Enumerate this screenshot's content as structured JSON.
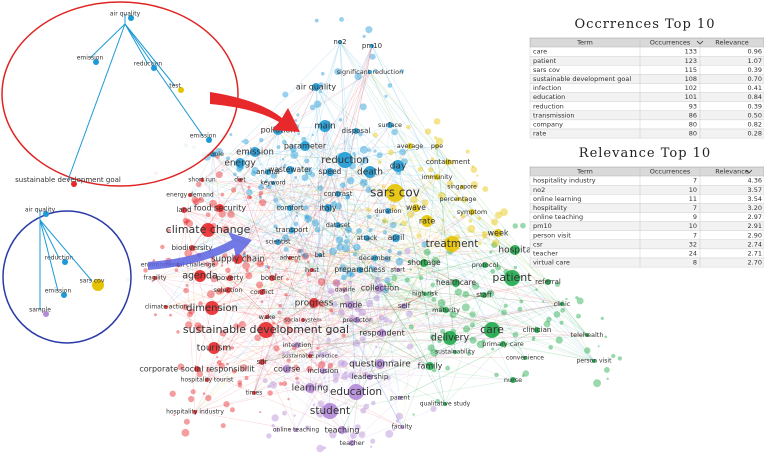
{
  "network": {
    "nodes": [
      {
        "label": "no2",
        "color": "#1c9ad6"
      },
      {
        "label": "pm10",
        "color": "#1c9ad6"
      },
      {
        "label": "significant reduction",
        "color": "#1c9ad6"
      },
      {
        "label": "air quality",
        "color": "#1c9ad6"
      },
      {
        "label": "surface",
        "color": "#1c9ad6"
      },
      {
        "label": "pollution",
        "color": "#1c9ad6"
      },
      {
        "label": "main",
        "color": "#1c9ad6"
      },
      {
        "label": "disposal",
        "color": "#1c9ad6"
      },
      {
        "label": "parameter",
        "color": "#1c9ad6"
      },
      {
        "label": "reduction",
        "color": "#1c9ad6"
      },
      {
        "label": "average",
        "color": "#e6c300"
      },
      {
        "label": "ppe",
        "color": "#e6c300"
      },
      {
        "label": "emission",
        "color": "#1c9ad6"
      },
      {
        "label": "people",
        "color": "#1c9ad6"
      },
      {
        "label": "day",
        "color": "#1c9ad6"
      },
      {
        "label": "containment",
        "color": "#e6c300"
      },
      {
        "label": "death",
        "color": "#1c9ad6"
      },
      {
        "label": "speed",
        "color": "#1c9ad6"
      },
      {
        "label": "wastewater",
        "color": "#1c9ad6"
      },
      {
        "label": "energy",
        "color": "#1c9ad6"
      },
      {
        "label": "animal",
        "color": "#1c9ad6"
      },
      {
        "label": "keyword",
        "color": "#1c9ad6"
      },
      {
        "label": "short run",
        "color": "#e8292b"
      },
      {
        "label": "diet",
        "color": "#e8292b"
      },
      {
        "label": "immunity",
        "color": "#e6c300"
      },
      {
        "label": "energy demand",
        "color": "#e8292b"
      },
      {
        "label": "contrast",
        "color": "#1c9ad6"
      },
      {
        "label": "sars cov",
        "color": "#e6c300"
      },
      {
        "label": "singapore",
        "color": "#e6c300"
      },
      {
        "label": "percentage",
        "color": "#e6c300"
      },
      {
        "label": "italy",
        "color": "#1c9ad6"
      },
      {
        "label": "land",
        "color": "#e8292b"
      },
      {
        "label": "food security",
        "color": "#e8292b"
      },
      {
        "label": "comfort",
        "color": "#1c9ad6"
      },
      {
        "label": "duration",
        "color": "#1c9ad6"
      },
      {
        "label": "wave",
        "color": "#e6c300"
      },
      {
        "label": "symptom",
        "color": "#e6c300"
      },
      {
        "label": "dataset",
        "color": "#1c9ad6"
      },
      {
        "label": "climate change",
        "color": "#e8292b"
      },
      {
        "label": "transport",
        "color": "#1c9ad6"
      },
      {
        "label": "rate",
        "color": "#e6c300"
      },
      {
        "label": "week",
        "color": "#e6c300"
      },
      {
        "label": "april",
        "color": "#1c9ad6"
      },
      {
        "label": "attack",
        "color": "#1c9ad6"
      },
      {
        "label": "scientist",
        "color": "#1c9ad6"
      },
      {
        "label": "treatment",
        "color": "#e6c300"
      },
      {
        "label": "biodiversity",
        "color": "#e8292b"
      },
      {
        "label": "bat",
        "color": "#1c9ad6"
      },
      {
        "label": "december",
        "color": "#1c9ad6"
      },
      {
        "label": "hospita",
        "color": "#1ea84a"
      },
      {
        "label": "supply chain",
        "color": "#e8292b"
      },
      {
        "label": "advent",
        "color": "#e8292b"
      },
      {
        "label": "shortage",
        "color": "#1ea84a"
      },
      {
        "label": "protocol",
        "color": "#1ea84a"
      },
      {
        "label": "environmental challenge",
        "color": "#e8292b"
      },
      {
        "label": "agenda",
        "color": "#e8292b"
      },
      {
        "label": "poverty",
        "color": "#e8292b"
      },
      {
        "label": "host",
        "color": "#e8292b"
      },
      {
        "label": "preparedness",
        "color": "#1c9ad6"
      },
      {
        "label": "start",
        "color": "#b48ad8"
      },
      {
        "label": "patient",
        "color": "#1ea84a"
      },
      {
        "label": "fragility",
        "color": "#e8292b"
      },
      {
        "label": "selection",
        "color": "#e8292b"
      },
      {
        "label": "conflict",
        "color": "#e8292b"
      },
      {
        "label": "border",
        "color": "#e8292b"
      },
      {
        "label": "daylife",
        "color": "#b48ad8"
      },
      {
        "label": "collection",
        "color": "#b48ad8"
      },
      {
        "label": "healthcare",
        "color": "#1ea84a"
      },
      {
        "label": "referral",
        "color": "#1ea84a"
      },
      {
        "label": "climate action",
        "color": "#e8292b"
      },
      {
        "label": "dimension",
        "color": "#e8292b"
      },
      {
        "label": "wake",
        "color": "#e8292b"
      },
      {
        "label": "progress",
        "color": "#e8292b"
      },
      {
        "label": "mode",
        "color": "#b48ad8"
      },
      {
        "label": "self",
        "color": "#b48ad8"
      },
      {
        "label": "high risk",
        "color": "#1ea84a"
      },
      {
        "label": "staff",
        "color": "#1ea84a"
      },
      {
        "label": "clinic",
        "color": "#1ea84a"
      },
      {
        "label": "maturity",
        "color": "#1ea84a"
      },
      {
        "label": "social system",
        "color": "#e8292b"
      },
      {
        "label": "predictor",
        "color": "#b48ad8"
      },
      {
        "label": "sustainable development goal",
        "color": "#e8292b"
      },
      {
        "label": "respondent",
        "color": "#b48ad8"
      },
      {
        "label": "care",
        "color": "#1ea84a"
      },
      {
        "label": "clinician",
        "color": "#1ea84a"
      },
      {
        "label": "telehealth",
        "color": "#1ea84a"
      },
      {
        "label": "tourism",
        "color": "#e8292b"
      },
      {
        "label": "intention",
        "color": "#b48ad8"
      },
      {
        "label": "delivery",
        "color": "#1ea84a"
      },
      {
        "label": "primary care",
        "color": "#1ea84a"
      },
      {
        "label": "sustainable practice",
        "color": "#e8292b"
      },
      {
        "label": "sustainability",
        "color": "#1ea84a"
      },
      {
        "label": "sdr",
        "color": "#e8292b"
      },
      {
        "label": "questionnaire",
        "color": "#b48ad8"
      },
      {
        "label": "convenience",
        "color": "#1ea84a"
      },
      {
        "label": "person visit",
        "color": "#1ea84a"
      },
      {
        "label": "corporate social responsibilit",
        "color": "#e8292b"
      },
      {
        "label": "course",
        "color": "#b48ad8"
      },
      {
        "label": "inclusion",
        "color": "#b48ad8"
      },
      {
        "label": "family",
        "color": "#1ea84a"
      },
      {
        "label": "leadership",
        "color": "#b48ad8"
      },
      {
        "label": "hospitality tourist",
        "color": "#e8292b"
      },
      {
        "label": "nurse",
        "color": "#1ea84a"
      },
      {
        "label": "learning",
        "color": "#b48ad8"
      },
      {
        "label": "education",
        "color": "#b48ad8"
      },
      {
        "label": "times",
        "color": "#e8292b"
      },
      {
        "label": "parent",
        "color": "#b48ad8"
      },
      {
        "label": "student",
        "color": "#b48ad8"
      },
      {
        "label": "qualitative study",
        "color": "#1ea84a"
      },
      {
        "label": "hospitality industry",
        "color": "#e8292b"
      },
      {
        "label": "faculty",
        "color": "#b48ad8"
      },
      {
        "label": "online teaching",
        "color": "#b48ad8"
      },
      {
        "label": "teaching",
        "color": "#b48ad8"
      },
      {
        "label": "teacher",
        "color": "#b48ad8"
      }
    ],
    "insets": [
      {
        "labels": [
          "air quality",
          "emission",
          "reduction",
          "test",
          "emission",
          "sustainable development goal"
        ]
      },
      {
        "labels": [
          "air quality",
          "reduction",
          "sars cov",
          "emission",
          "sample"
        ]
      }
    ]
  },
  "tables": [
    {
      "title": "Occrrences Top 10",
      "header": [
        "Term",
        "Occurrences",
        "Relevance"
      ],
      "rows": [
        [
          "care",
          "133",
          "0.96"
        ],
        [
          "patient",
          "123",
          "1.07"
        ],
        [
          "sars cov",
          "115",
          "0.39"
        ],
        [
          "sustainable development goal",
          "108",
          "0.70"
        ],
        [
          "infection",
          "102",
          "0.41"
        ],
        [
          "education",
          "101",
          "0.84"
        ],
        [
          "reduction",
          "93",
          "0.39"
        ],
        [
          "transmission",
          "86",
          "0.50"
        ],
        [
          "company",
          "80",
          "0.82"
        ],
        [
          "rate",
          "80",
          "0.28"
        ]
      ]
    },
    {
      "title": "Relevance Top 10",
      "header": [
        "Term",
        "Occurrences",
        "Relevance"
      ],
      "rows": [
        [
          "hospitality industry",
          "7",
          "4.36"
        ],
        [
          "no2",
          "10",
          "3.57"
        ],
        [
          "online learning",
          "11",
          "3.54"
        ],
        [
          "hospitality",
          "7",
          "3.20"
        ],
        [
          "online teaching",
          "9",
          "2.97"
        ],
        [
          "pm10",
          "10",
          "2.91"
        ],
        [
          "person visit",
          "7",
          "2.90"
        ],
        [
          "csr",
          "32",
          "2.74"
        ],
        [
          "teacher",
          "24",
          "2.71"
        ],
        [
          "virtual care",
          "8",
          "2.70"
        ]
      ]
    }
  ]
}
